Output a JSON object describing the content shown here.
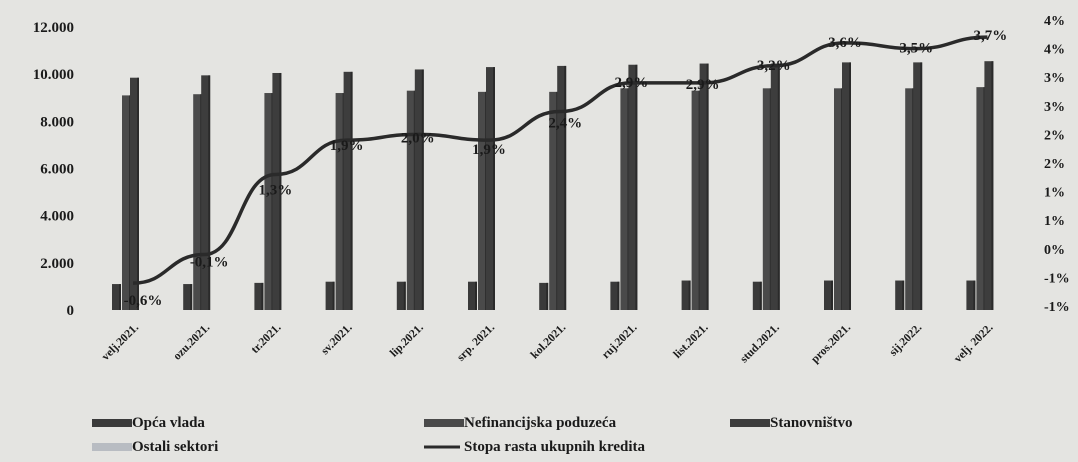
{
  "chart_data": {
    "type": "bar",
    "categories": [
      "velj.2021.",
      "ozu.2021.",
      "tr.2021.",
      "sv.2021.",
      "lip.2021.",
      "srp. 2021.",
      "kol.2021.",
      "ruj.2021.",
      "list.2021.",
      "stud.2021.",
      "pros.2021.",
      "sij.2022.",
      "velj. 2022."
    ],
    "series": [
      {
        "name": "Opća vlada",
        "type": "bar",
        "axis": "left",
        "color": "#3a3a3a",
        "values": [
          1100,
          1100,
          1150,
          1200,
          1200,
          1200,
          1150,
          1200,
          1250,
          1200,
          1250,
          1250,
          1250
        ]
      },
      {
        "name": "Nefinancijska poduzeća",
        "type": "bar",
        "axis": "left",
        "color": "#4a4a4a",
        "values": [
          9100,
          9150,
          9200,
          9200,
          9300,
          9250,
          9250,
          9400,
          9300,
          9400,
          9400,
          9400,
          9450
        ]
      },
      {
        "name": "Stanovništvo",
        "type": "bar",
        "axis": "left",
        "color": "#3d3d3d",
        "values": [
          9850,
          9950,
          10050,
          10100,
          10200,
          10300,
          10350,
          10400,
          10450,
          10450,
          10500,
          10500,
          10550
        ]
      },
      {
        "name": "Ostali sektori",
        "type": "bar",
        "axis": "left",
        "color": "#b8bcc2",
        "values": [
          0,
          0,
          0,
          0,
          0,
          0,
          0,
          0,
          0,
          0,
          0,
          0,
          0
        ]
      },
      {
        "name": "Stopa rasta ukupnih kredita",
        "type": "line",
        "axis": "right",
        "color": "#2a2a2a",
        "values": [
          -0.6,
          -0.1,
          1.3,
          1.9,
          2.0,
          1.9,
          2.4,
          2.9,
          2.9,
          3.2,
          3.6,
          3.5,
          3.7
        ],
        "data_labels": [
          "-0,6%",
          "-0,1%",
          "1,3%",
          "1,9%",
          "2,0%",
          "1,9%",
          "2,4%",
          "2,9%",
          "2,9%",
          "3,2%",
          "3,6%",
          "3,5%",
          "3,7%"
        ]
      }
    ],
    "y_left": {
      "ticks": [
        0,
        2000,
        4000,
        6000,
        8000,
        10000,
        12000
      ],
      "tick_labels": [
        "0",
        "2.000",
        "4.000",
        "6.000",
        "8.000",
        "10.000",
        "12.000"
      ],
      "ylim": [
        0,
        12000
      ]
    },
    "y_right": {
      "tick_labels": [
        "4%",
        "4%",
        "3%",
        "3%",
        "2%",
        "2%",
        "1%",
        "1%",
        "0%",
        "-1%",
        "-1%"
      ],
      "ylim": [
        -1,
        4
      ]
    },
    "title": "",
    "legend": {
      "placement": "bottom",
      "entries": [
        "Opća vlada",
        "Nefinancijska poduzeća",
        "Stanovništvo",
        "Ostali sektori",
        "Stopa rasta ukupnih kredita"
      ]
    },
    "grid": false
  }
}
